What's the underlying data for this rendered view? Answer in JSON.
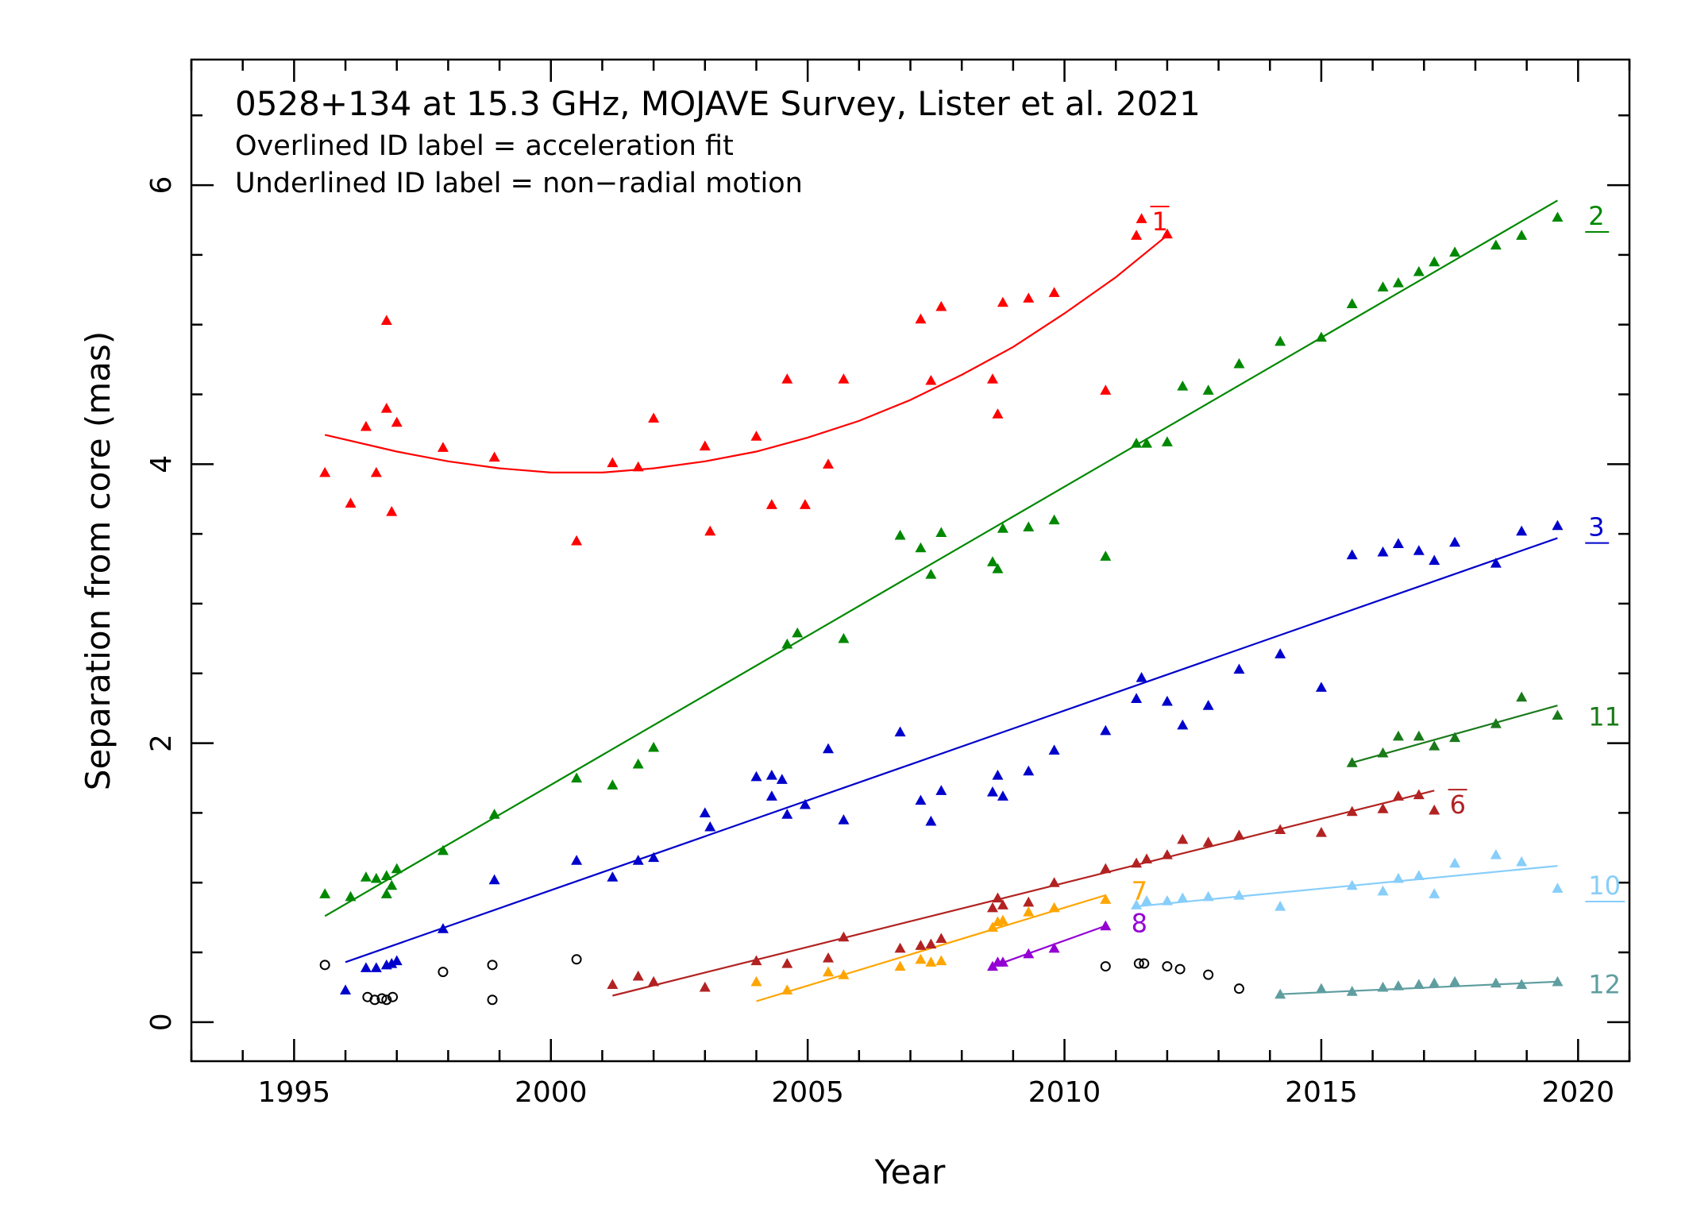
{
  "chart_data": {
    "type": "scatter",
    "title": "0528+134 at 15.3 GHz, MOJAVE Survey, Lister et al. 2021",
    "subtitle_lines": [
      "Overlined ID label = acceleration fit",
      "Underlined ID label = non−radial motion"
    ],
    "xlabel": "Year",
    "ylabel": "Separation from core (mas)",
    "xlim": [
      1993.0,
      2021.0
    ],
    "ylim": [
      -0.28,
      6.9
    ],
    "xticks": [
      1995,
      2000,
      2005,
      2010,
      2015,
      2020
    ],
    "xtick_labels": [
      "1995",
      "2000",
      "2005",
      "2010",
      "2015",
      "2020"
    ],
    "yticks": [
      0,
      2,
      4,
      6
    ],
    "ytick_labels": [
      "0",
      "2",
      "4",
      "6"
    ],
    "grid": false,
    "legend": "none",
    "core_points": {
      "marker": "open-circle",
      "color": "#000000",
      "points": [
        [
          1995.6,
          0.41
        ],
        [
          1996.43,
          0.18
        ],
        [
          1996.57,
          0.16
        ],
        [
          1996.71,
          0.17
        ],
        [
          1996.8,
          0.16
        ],
        [
          1996.92,
          0.18
        ],
        [
          1997.9,
          0.36
        ],
        [
          1998.86,
          0.41
        ],
        [
          1998.86,
          0.16
        ],
        [
          2000.5,
          0.45
        ],
        [
          2010.8,
          0.4
        ],
        [
          2011.45,
          0.42
        ],
        [
          2011.55,
          0.42
        ],
        [
          2012.0,
          0.4
        ],
        [
          2012.25,
          0.38
        ],
        [
          2012.8,
          0.34
        ],
        [
          2013.4,
          0.24
        ]
      ]
    },
    "series": [
      {
        "name": "1",
        "label_style": "overline",
        "color": "#ff0000",
        "label_pos": [
          2011.7,
          5.75
        ],
        "fit": "quadratic",
        "fit_curve": [
          [
            1995.6,
            4.21
          ],
          [
            1997,
            4.09
          ],
          [
            1998,
            4.02
          ],
          [
            1999,
            3.97
          ],
          [
            2000,
            3.94
          ],
          [
            2001,
            3.94
          ],
          [
            2002,
            3.97
          ],
          [
            2003,
            4.02
          ],
          [
            2004,
            4.09
          ],
          [
            2005,
            4.19
          ],
          [
            2006,
            4.31
          ],
          [
            2007,
            4.46
          ],
          [
            2008,
            4.64
          ],
          [
            2009,
            4.84
          ],
          [
            2010,
            5.08
          ],
          [
            2011,
            5.34
          ],
          [
            2012,
            5.64
          ]
        ],
        "points": [
          [
            1995.6,
            3.94
          ],
          [
            1996.1,
            3.72
          ],
          [
            1996.4,
            4.27
          ],
          [
            1996.6,
            3.94
          ],
          [
            1996.8,
            5.03
          ],
          [
            1996.8,
            4.4
          ],
          [
            1996.9,
            3.66
          ],
          [
            1997.0,
            4.3
          ],
          [
            1997.9,
            4.12
          ],
          [
            1998.9,
            4.05
          ],
          [
            2000.5,
            3.45
          ],
          [
            2001.2,
            4.01
          ],
          [
            2001.7,
            3.98
          ],
          [
            2002.0,
            4.33
          ],
          [
            2003.0,
            4.13
          ],
          [
            2003.1,
            3.52
          ],
          [
            2004.0,
            4.2
          ],
          [
            2004.3,
            3.71
          ],
          [
            2004.6,
            4.61
          ],
          [
            2004.95,
            3.71
          ],
          [
            2005.4,
            4.0
          ],
          [
            2005.7,
            4.61
          ],
          [
            2007.2,
            5.04
          ],
          [
            2007.4,
            4.6
          ],
          [
            2007.6,
            5.13
          ],
          [
            2008.6,
            4.61
          ],
          [
            2008.7,
            4.36
          ],
          [
            2008.8,
            5.16
          ],
          [
            2009.3,
            5.19
          ],
          [
            2009.8,
            5.23
          ],
          [
            2010.8,
            4.53
          ],
          [
            2011.4,
            5.64
          ],
          [
            2011.5,
            5.76
          ],
          [
            2012.0,
            5.65
          ]
        ]
      },
      {
        "name": "2",
        "label_style": "underline",
        "color": "#008800",
        "label_pos": [
          2020.2,
          5.79
        ],
        "fit": "linear",
        "fit_curve": [
          [
            1995.6,
            0.76
          ],
          [
            2019.6,
            5.89
          ]
        ],
        "points": [
          [
            1995.6,
            0.92
          ],
          [
            1996.1,
            0.9
          ],
          [
            1996.4,
            1.04
          ],
          [
            1996.6,
            1.03
          ],
          [
            1996.8,
            1.05
          ],
          [
            1996.8,
            0.92
          ],
          [
            1996.9,
            0.98
          ],
          [
            1997.0,
            1.1
          ],
          [
            1997.9,
            1.23
          ],
          [
            1998.9,
            1.49
          ],
          [
            2000.5,
            1.75
          ],
          [
            2001.2,
            1.7
          ],
          [
            2001.7,
            1.85
          ],
          [
            2002.0,
            1.97
          ],
          [
            2004.6,
            2.71
          ],
          [
            2004.8,
            2.79
          ],
          [
            2005.7,
            2.75
          ],
          [
            2006.8,
            3.49
          ],
          [
            2007.2,
            3.4
          ],
          [
            2007.4,
            3.21
          ],
          [
            2007.6,
            3.51
          ],
          [
            2008.6,
            3.3
          ],
          [
            2008.7,
            3.25
          ],
          [
            2008.8,
            3.54
          ],
          [
            2009.3,
            3.55
          ],
          [
            2009.8,
            3.6
          ],
          [
            2010.8,
            3.34
          ],
          [
            2011.4,
            4.15
          ],
          [
            2011.6,
            4.15
          ],
          [
            2012.0,
            4.16
          ],
          [
            2012.3,
            4.56
          ],
          [
            2012.8,
            4.53
          ],
          [
            2013.4,
            4.72
          ],
          [
            2014.2,
            4.88
          ],
          [
            2015.0,
            4.91
          ],
          [
            2015.6,
            5.15
          ],
          [
            2016.2,
            5.27
          ],
          [
            2016.5,
            5.3
          ],
          [
            2016.9,
            5.38
          ],
          [
            2017.2,
            5.45
          ],
          [
            2017.6,
            5.52
          ],
          [
            2018.4,
            5.57
          ],
          [
            2018.9,
            5.64
          ],
          [
            2019.6,
            5.77
          ]
        ]
      },
      {
        "name": "3",
        "label_style": "underline",
        "color": "#0000cc",
        "label_pos": [
          2020.2,
          3.56
        ],
        "fit": "linear",
        "fit_curve": [
          [
            1996.0,
            0.43
          ],
          [
            2019.6,
            3.47
          ]
        ],
        "points": [
          [
            1996.0,
            0.23
          ],
          [
            1996.4,
            0.39
          ],
          [
            1996.6,
            0.39
          ],
          [
            1996.8,
            0.41
          ],
          [
            1996.9,
            0.42
          ],
          [
            1997.0,
            0.44
          ],
          [
            1997.9,
            0.67
          ],
          [
            1998.9,
            1.02
          ],
          [
            2000.5,
            1.16
          ],
          [
            2001.2,
            1.04
          ],
          [
            2001.7,
            1.16
          ],
          [
            2002.0,
            1.18
          ],
          [
            2003.0,
            1.5
          ],
          [
            2003.1,
            1.4
          ],
          [
            2004.0,
            1.76
          ],
          [
            2004.3,
            1.62
          ],
          [
            2004.3,
            1.77
          ],
          [
            2004.5,
            1.74
          ],
          [
            2004.6,
            1.49
          ],
          [
            2004.95,
            1.56
          ],
          [
            2005.4,
            1.96
          ],
          [
            2005.7,
            1.45
          ],
          [
            2006.8,
            2.08
          ],
          [
            2007.2,
            1.59
          ],
          [
            2007.4,
            1.44
          ],
          [
            2007.6,
            1.66
          ],
          [
            2008.6,
            1.65
          ],
          [
            2008.7,
            1.77
          ],
          [
            2008.8,
            1.62
          ],
          [
            2009.3,
            1.8
          ],
          [
            2009.8,
            1.95
          ],
          [
            2010.8,
            2.09
          ],
          [
            2011.4,
            2.32
          ],
          [
            2011.5,
            2.47
          ],
          [
            2012.0,
            2.3
          ],
          [
            2012.3,
            2.13
          ],
          [
            2012.8,
            2.27
          ],
          [
            2013.4,
            2.53
          ],
          [
            2014.2,
            2.64
          ],
          [
            2015.0,
            2.4
          ],
          [
            2015.6,
            3.35
          ],
          [
            2016.2,
            3.37
          ],
          [
            2016.5,
            3.43
          ],
          [
            2016.9,
            3.38
          ],
          [
            2017.2,
            3.31
          ],
          [
            2017.6,
            3.44
          ],
          [
            2018.4,
            3.29
          ],
          [
            2018.9,
            3.52
          ],
          [
            2019.6,
            3.56
          ]
        ]
      },
      {
        "name": "6",
        "label_style": "overline",
        "color": "#b22222",
        "label_pos": [
          2017.5,
          1.57
        ],
        "fit": "quadratic",
        "fit_curve": [
          [
            2001.2,
            0.19
          ],
          [
            2017.2,
            1.66
          ]
        ],
        "points": [
          [
            2001.2,
            0.27
          ],
          [
            2001.7,
            0.33
          ],
          [
            2002.0,
            0.29
          ],
          [
            2003.0,
            0.25
          ],
          [
            2004.0,
            0.44
          ],
          [
            2004.6,
            0.42
          ],
          [
            2005.4,
            0.46
          ],
          [
            2005.7,
            0.61
          ],
          [
            2006.8,
            0.53
          ],
          [
            2007.2,
            0.55
          ],
          [
            2007.4,
            0.56
          ],
          [
            2007.6,
            0.6
          ],
          [
            2008.6,
            0.82
          ],
          [
            2008.7,
            0.89
          ],
          [
            2008.8,
            0.84
          ],
          [
            2009.3,
            0.86
          ],
          [
            2009.8,
            1.0
          ],
          [
            2010.8,
            1.1
          ],
          [
            2011.4,
            1.14
          ],
          [
            2011.6,
            1.17
          ],
          [
            2012.0,
            1.2
          ],
          [
            2012.3,
            1.31
          ],
          [
            2012.8,
            1.29
          ],
          [
            2013.4,
            1.34
          ],
          [
            2014.2,
            1.38
          ],
          [
            2015.0,
            1.36
          ],
          [
            2015.6,
            1.51
          ],
          [
            2016.2,
            1.53
          ],
          [
            2016.5,
            1.62
          ],
          [
            2016.9,
            1.63
          ],
          [
            2017.2,
            1.52
          ]
        ]
      },
      {
        "name": "7",
        "label_style": "plain",
        "color": "#ffa500",
        "label_pos": [
          2011.3,
          0.95
        ],
        "fit": "linear",
        "fit_curve": [
          [
            2004.0,
            0.15
          ],
          [
            2010.8,
            0.91
          ]
        ],
        "points": [
          [
            2004.0,
            0.29
          ],
          [
            2004.6,
            0.23
          ],
          [
            2005.4,
            0.36
          ],
          [
            2005.7,
            0.34
          ],
          [
            2006.8,
            0.4
          ],
          [
            2007.2,
            0.45
          ],
          [
            2007.4,
            0.43
          ],
          [
            2007.6,
            0.44
          ],
          [
            2008.6,
            0.68
          ],
          [
            2008.7,
            0.72
          ],
          [
            2008.8,
            0.73
          ],
          [
            2009.3,
            0.79
          ],
          [
            2009.8,
            0.82
          ],
          [
            2010.8,
            0.88
          ]
        ]
      },
      {
        "name": "8",
        "label_style": "plain",
        "color": "#9400d3",
        "label_pos": [
          2011.3,
          0.72
        ],
        "fit": "linear",
        "fit_curve": [
          [
            2008.6,
            0.4
          ],
          [
            2010.8,
            0.69
          ]
        ],
        "points": [
          [
            2008.6,
            0.4
          ],
          [
            2008.7,
            0.43
          ],
          [
            2008.8,
            0.43
          ],
          [
            2009.3,
            0.49
          ],
          [
            2009.8,
            0.53
          ],
          [
            2010.8,
            0.69
          ]
        ]
      },
      {
        "name": "10",
        "label_style": "underline",
        "color": "#87cefa",
        "label_pos": [
          2020.2,
          0.99
        ],
        "fit": "linear",
        "fit_curve": [
          [
            2011.4,
            0.83
          ],
          [
            2019.6,
            1.12
          ]
        ],
        "points": [
          [
            2011.4,
            0.84
          ],
          [
            2011.6,
            0.87
          ],
          [
            2012.0,
            0.87
          ],
          [
            2012.3,
            0.89
          ],
          [
            2012.8,
            0.9
          ],
          [
            2013.4,
            0.91
          ],
          [
            2014.2,
            0.83
          ],
          [
            2015.6,
            0.98
          ],
          [
            2016.2,
            0.94
          ],
          [
            2016.5,
            1.03
          ],
          [
            2016.9,
            1.05
          ],
          [
            2017.2,
            0.92
          ],
          [
            2017.6,
            1.14
          ],
          [
            2018.4,
            1.2
          ],
          [
            2018.9,
            1.15
          ],
          [
            2019.6,
            0.96
          ]
        ]
      },
      {
        "name": "11",
        "label_style": "plain",
        "color": "#1a7a1a",
        "label_pos": [
          2020.2,
          2.2
        ],
        "fit": "linear",
        "fit_curve": [
          [
            2015.6,
            1.86
          ],
          [
            2019.6,
            2.27
          ]
        ],
        "points": [
          [
            2015.6,
            1.86
          ],
          [
            2016.2,
            1.93
          ],
          [
            2016.5,
            2.05
          ],
          [
            2016.9,
            2.05
          ],
          [
            2017.2,
            1.98
          ],
          [
            2017.6,
            2.04
          ],
          [
            2018.4,
            2.14
          ],
          [
            2018.9,
            2.33
          ],
          [
            2019.6,
            2.2
          ]
        ]
      },
      {
        "name": "12",
        "label_style": "plain",
        "color": "#5f9ea0",
        "label_pos": [
          2020.2,
          0.28
        ],
        "fit": "linear",
        "fit_curve": [
          [
            2014.2,
            0.2
          ],
          [
            2019.6,
            0.29
          ]
        ],
        "points": [
          [
            2014.2,
            0.2
          ],
          [
            2015.0,
            0.24
          ],
          [
            2015.6,
            0.22
          ],
          [
            2016.2,
            0.25
          ],
          [
            2016.5,
            0.26
          ],
          [
            2016.9,
            0.27
          ],
          [
            2017.2,
            0.28
          ],
          [
            2017.6,
            0.29
          ],
          [
            2018.4,
            0.28
          ],
          [
            2018.9,
            0.27
          ],
          [
            2019.6,
            0.29
          ]
        ]
      }
    ]
  }
}
